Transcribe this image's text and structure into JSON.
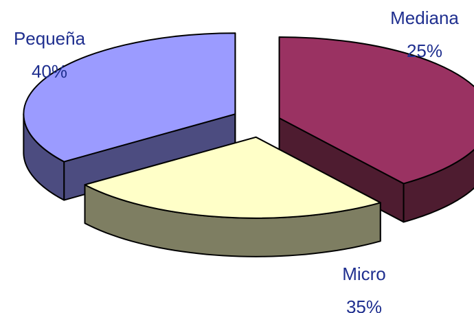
{
  "chart_data": {
    "type": "pie",
    "style": "3d-exploded",
    "slices": [
      {
        "category": "Pequeña",
        "value": 40,
        "label": "40%",
        "color": "#9a3262",
        "side_color": "#4e1c30"
      },
      {
        "category": "Mediana",
        "value": 25,
        "label": "25%",
        "color": "#ffffc8",
        "side_color": "#7e7e62"
      },
      {
        "category": "Micro",
        "value": 35,
        "label": "35%",
        "color": "#9b9bff",
        "side_color": "#4c4c80"
      }
    ],
    "text_color": "#1f2f8f",
    "outline_color": "#000000"
  }
}
